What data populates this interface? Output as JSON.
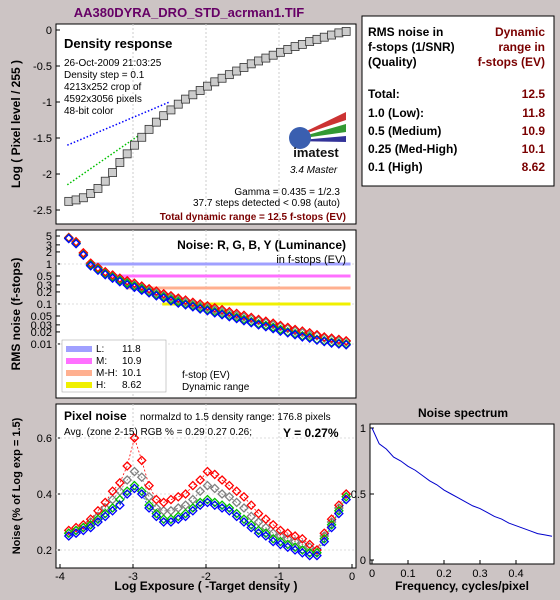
{
  "title": "AA380DYRA_DRO_STD_acrman1.TIF",
  "colors": {
    "title": "#660066",
    "maroon": "#7a0000",
    "lum": "#a0a0ff",
    "med": "#ff70ff",
    "mh": "#ffb090",
    "high": "#f0f000",
    "red": "#ff0000",
    "green": "#00c000",
    "blue": "#0000ff",
    "gray": "#808080"
  },
  "density": {
    "panel_title": "Density response",
    "info": [
      "26-Oct-2009 21:03:25",
      "Density step = 0.1",
      "4213x252 crop of",
      "4592x3056 pixels",
      "48-bit color"
    ],
    "logo": "imatest",
    "logo_sub": "3.4  Master",
    "gamma": "Gamma = 0.435 = 1/2.3",
    "steps": "37.7 steps detected < 0.98 (auto)",
    "total": "Total dynamic range = 12.5 f-stops (EV)",
    "ylabel": "Log ( Pixel level / 255 )",
    "yticks": [
      "0",
      "-0.5",
      "-1",
      "-1.5",
      "-2",
      "-2.5"
    ]
  },
  "table": {
    "header_left": [
      "RMS noise in",
      "f-stops (1/SNR)",
      "(Quality)"
    ],
    "header_right": [
      "Dynamic",
      "range in",
      "f-stops (EV)"
    ],
    "rows": [
      {
        "label": "Total:",
        "value": "12.5"
      },
      {
        "label": "1.0   (Low):",
        "value": "11.8"
      },
      {
        "label": "0.5   (Medium)",
        "value": "10.9"
      },
      {
        "label": "0.25 (Med-High)",
        "value": "10.1"
      },
      {
        "label": "0.1   (High)",
        "value": "8.62"
      }
    ]
  },
  "noise": {
    "panel_title": "Noise: R, G, B, Y (Luminance)",
    "subtitle": "in f-stops (EV)",
    "ylabel": "RMS noise (f-stops)",
    "yticks": [
      "5",
      "3",
      "2",
      "1",
      "0.5",
      "0.3",
      "0.2",
      "0.1",
      "0.05",
      "0.03",
      "0.02",
      "0.01"
    ],
    "legend": [
      {
        "label": "L:",
        "value": "11.8"
      },
      {
        "label": "M:",
        "value": "10.9"
      },
      {
        "label": "M-H:",
        "value": "10.1"
      },
      {
        "label": "H:",
        "value": "8.62"
      }
    ],
    "legend_note1": "f-stop (EV)",
    "legend_note2": "Dynamic range"
  },
  "pixel": {
    "panel_title": "Pixel noise",
    "norm": "normalzd to 1.5 density range: 176.8 pixels",
    "avg": "Avg. (zone 2-15) RGB % = 0.29  0.27  0.26;",
    "yval": "Y = 0.27%",
    "ylabel": "Noise (% of Log exp = 1.5)",
    "yticks": [
      "0.6",
      "0.4",
      "0.2"
    ],
    "xlabel": "Log Exposure ( -Target density )",
    "xticks": [
      "-4",
      "-3",
      "-2",
      "-1",
      "0"
    ]
  },
  "spectrum": {
    "title": "Noise spectrum",
    "xlabel": "Frequency, cycles/pixel",
    "xticks": [
      "0",
      "0.1",
      "0.2",
      "0.3",
      "0.4"
    ],
    "yticks": [
      "1",
      "0.5",
      "0"
    ]
  },
  "chart_data": [
    {
      "type": "scatter",
      "name": "density-response",
      "x_range": [
        -4,
        0
      ],
      "ylim": [
        -2.55,
        0.02
      ],
      "points_x": [
        -3.88,
        -3.78,
        -3.68,
        -3.58,
        -3.48,
        -3.38,
        -3.28,
        -3.18,
        -3.08,
        -2.98,
        -2.88,
        -2.78,
        -2.68,
        -2.58,
        -2.48,
        -2.38,
        -2.28,
        -2.18,
        -2.08,
        -1.98,
        -1.88,
        -1.78,
        -1.68,
        -1.58,
        -1.48,
        -1.38,
        -1.28,
        -1.18,
        -1.08,
        -0.98,
        -0.88,
        -0.78,
        -0.68,
        -0.58,
        -0.48,
        -0.38,
        -0.28,
        -0.18,
        -0.08
      ],
      "points_y": [
        -2.38,
        -2.36,
        -2.33,
        -2.27,
        -2.2,
        -2.1,
        -1.98,
        -1.84,
        -1.72,
        -1.6,
        -1.49,
        -1.38,
        -1.28,
        -1.19,
        -1.11,
        -1.03,
        -0.96,
        -0.9,
        -0.84,
        -0.78,
        -0.72,
        -0.67,
        -0.62,
        -0.57,
        -0.52,
        -0.47,
        -0.43,
        -0.39,
        -0.35,
        -0.31,
        -0.27,
        -0.23,
        -0.2,
        -0.16,
        -0.13,
        -0.1,
        -0.07,
        -0.04,
        -0.02
      ],
      "fit_blue": [
        [
          -3.9,
          -1.6
        ],
        [
          -2.5,
          -1.0
        ]
      ],
      "fit_green": [
        [
          -3.9,
          -2.15
        ],
        [
          -2.9,
          -1.45
        ]
      ]
    },
    {
      "type": "scatter",
      "name": "rms-noise-fstops",
      "ylim": [
        0.005,
        5
      ],
      "scale": "log",
      "x": [
        -3.88,
        -3.78,
        -3.68,
        -3.58,
        -3.48,
        -3.38,
        -3.28,
        -3.18,
        -3.08,
        -2.98,
        -2.88,
        -2.78,
        -2.68,
        -2.58,
        -2.48,
        -2.38,
        -2.28,
        -2.18,
        -2.08,
        -1.98,
        -1.88,
        -1.78,
        -1.68,
        -1.58,
        -1.48,
        -1.38,
        -1.28,
        -1.18,
        -1.08,
        -0.98,
        -0.88,
        -0.78,
        -0.68,
        -0.58,
        -0.48,
        -0.38,
        -0.28,
        -0.18,
        -0.08
      ],
      "series": [
        {
          "values": [
            4.6,
            3.6,
            1.9,
            1.05,
            0.82,
            0.64,
            0.53,
            0.44,
            0.38,
            0.33,
            0.28,
            0.24,
            0.21,
            0.18,
            0.16,
            0.14,
            0.125,
            0.11,
            0.1,
            0.09,
            0.08,
            0.072,
            0.064,
            0.058,
            0.052,
            0.046,
            0.041,
            0.037,
            0.033,
            0.029,
            0.026,
            0.023,
            0.021,
            0.019,
            0.017,
            0.015,
            0.014,
            0.013,
            0.012
          ]
        },
        {
          "values": [
            4.4,
            3.3,
            1.7,
            0.95,
            0.74,
            0.57,
            0.47,
            0.39,
            0.33,
            0.28,
            0.24,
            0.2,
            0.17,
            0.15,
            0.13,
            0.115,
            0.1,
            0.09,
            0.08,
            0.072,
            0.064,
            0.057,
            0.051,
            0.046,
            0.041,
            0.036,
            0.032,
            0.029,
            0.026,
            0.023,
            0.02,
            0.018,
            0.016,
            0.015,
            0.013,
            0.012,
            0.011,
            0.0105,
            0.01
          ]
        },
        {
          "values": [
            4.3,
            3.2,
            1.65,
            0.9,
            0.7,
            0.54,
            0.44,
            0.36,
            0.3,
            0.26,
            0.22,
            0.19,
            0.16,
            0.14,
            0.12,
            0.105,
            0.095,
            0.085,
            0.075,
            0.068,
            0.06,
            0.054,
            0.048,
            0.043,
            0.038,
            0.034,
            0.03,
            0.027,
            0.024,
            0.021,
            0.019,
            0.017,
            0.015,
            0.014,
            0.0125,
            0.0115,
            0.0105,
            0.01,
            0.0095
          ]
        },
        {
          "values": [
            4.5,
            3.4,
            1.8,
            1.0,
            0.78,
            0.6,
            0.5,
            0.41,
            0.35,
            0.3,
            0.26,
            0.22,
            0.19,
            0.165,
            0.145,
            0.128,
            0.113,
            0.1,
            0.09,
            0.081,
            0.072,
            0.065,
            0.058,
            0.052,
            0.047,
            0.042,
            0.038,
            0.034,
            0.03,
            0.027,
            0.024,
            0.021,
            0.019,
            0.017,
            0.016,
            0.014,
            0.013,
            0.012,
            0.0115
          ]
        }
      ],
      "thresholds": [
        1.0,
        0.5,
        0.25,
        0.1
      ]
    },
    {
      "type": "scatter",
      "name": "pixel-noise",
      "ylim": [
        0.15,
        0.7
      ],
      "x": [
        -3.88,
        -3.78,
        -3.68,
        -3.58,
        -3.48,
        -3.38,
        -3.28,
        -3.18,
        -3.08,
        -2.98,
        -2.88,
        -2.78,
        -2.68,
        -2.58,
        -2.48,
        -2.38,
        -2.28,
        -2.18,
        -2.08,
        -1.98,
        -1.88,
        -1.78,
        -1.68,
        -1.58,
        -1.48,
        -1.38,
        -1.28,
        -1.18,
        -1.08,
        -0.98,
        -0.88,
        -0.78,
        -0.68,
        -0.58,
        -0.48,
        -0.38,
        -0.28,
        -0.18,
        -0.08
      ],
      "series": [
        {
          "values": [
            0.27,
            0.28,
            0.29,
            0.31,
            0.34,
            0.37,
            0.41,
            0.44,
            0.5,
            0.6,
            0.52,
            0.43,
            0.38,
            0.37,
            0.38,
            0.39,
            0.4,
            0.43,
            0.45,
            0.48,
            0.47,
            0.45,
            0.43,
            0.41,
            0.39,
            0.36,
            0.33,
            0.31,
            0.29,
            0.27,
            0.26,
            0.25,
            0.24,
            0.22,
            0.2,
            0.26,
            0.31,
            0.36,
            0.4
          ]
        },
        {
          "values": [
            0.26,
            0.27,
            0.28,
            0.29,
            0.31,
            0.33,
            0.35,
            0.38,
            0.41,
            0.43,
            0.41,
            0.36,
            0.33,
            0.31,
            0.31,
            0.32,
            0.33,
            0.35,
            0.37,
            0.38,
            0.37,
            0.36,
            0.35,
            0.33,
            0.31,
            0.29,
            0.27,
            0.26,
            0.24,
            0.23,
            0.22,
            0.21,
            0.2,
            0.19,
            0.19,
            0.24,
            0.29,
            0.34,
            0.39
          ]
        },
        {
          "values": [
            0.25,
            0.26,
            0.27,
            0.28,
            0.3,
            0.32,
            0.34,
            0.36,
            0.4,
            0.42,
            0.4,
            0.35,
            0.32,
            0.3,
            0.3,
            0.31,
            0.32,
            0.34,
            0.36,
            0.37,
            0.36,
            0.35,
            0.34,
            0.32,
            0.3,
            0.28,
            0.26,
            0.25,
            0.23,
            0.22,
            0.21,
            0.2,
            0.19,
            0.18,
            0.18,
            0.23,
            0.28,
            0.33,
            0.38
          ]
        },
        {
          "values": [
            0.26,
            0.27,
            0.28,
            0.3,
            0.32,
            0.35,
            0.38,
            0.41,
            0.45,
            0.48,
            0.46,
            0.39,
            0.35,
            0.34,
            0.34,
            0.35,
            0.36,
            0.38,
            0.41,
            0.43,
            0.42,
            0.4,
            0.39,
            0.37,
            0.35,
            0.32,
            0.3,
            0.28,
            0.26,
            0.25,
            0.24,
            0.23,
            0.22,
            0.21,
            0.2,
            0.25,
            0.3,
            0.35,
            0.4
          ]
        }
      ]
    },
    {
      "type": "line",
      "name": "noise-spectrum",
      "xlim": [
        0,
        0.5
      ],
      "ylim": [
        0,
        1
      ],
      "x": [
        0,
        0.02,
        0.04,
        0.06,
        0.08,
        0.1,
        0.12,
        0.14,
        0.16,
        0.18,
        0.2,
        0.22,
        0.24,
        0.26,
        0.28,
        0.3,
        0.32,
        0.34,
        0.36,
        0.38,
        0.4,
        0.42,
        0.44,
        0.46,
        0.48,
        0.5
      ],
      "values": [
        1.0,
        0.88,
        0.84,
        0.78,
        0.75,
        0.71,
        0.68,
        0.64,
        0.6,
        0.57,
        0.53,
        0.5,
        0.47,
        0.44,
        0.41,
        0.39,
        0.36,
        0.33,
        0.31,
        0.28,
        0.26,
        0.24,
        0.22,
        0.2,
        0.19,
        0.18
      ]
    }
  ]
}
